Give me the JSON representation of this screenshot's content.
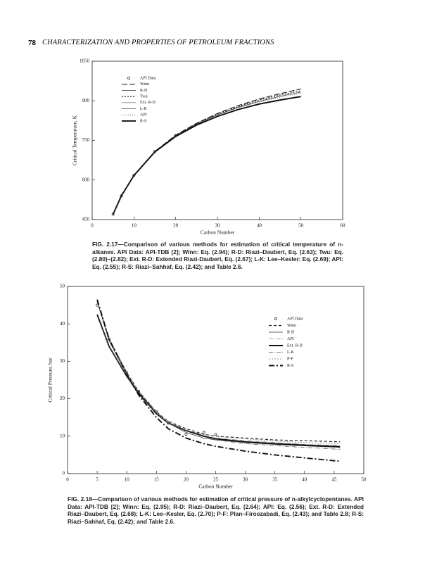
{
  "header": {
    "page_number": "78",
    "title": "CHARACTERIZATION AND PROPERTIES OF PETROLEUM FRACTIONS"
  },
  "chart_data": [
    {
      "type": "line",
      "x_label": "Carbon Number",
      "y_label": "Critical Temperature, K",
      "caption": "FIG. 2.17—Comparison of various methods for estimation of critical temperature of n-alkanes. API Data: API-TDB [2]; Winn: Eq. (2.94); R-D: Riazi–Daubert, Eq. (2.63); Twu: Eq. (2.80)–(2.82); Ext. R-D: Extended Riazi-Daubert, Eq. (2.67); L-K: Lee–Kesler: Eq. (2.69); API: Eq. (2.55); R-S: Riazi–Sahhaf, Eq. (2.42); and Table 2.6.",
      "x": [
        5,
        7,
        10,
        15,
        20,
        25,
        30,
        35,
        40,
        45,
        50
      ],
      "xlim": [
        0,
        60
      ],
      "xticks": [
        0,
        10,
        20,
        30,
        40,
        50,
        60
      ],
      "ylim": [
        450,
        1050
      ],
      "yticks": [
        450,
        600,
        750,
        900,
        1050
      ],
      "legend": "top-left",
      "series": [
        {
          "name": "API Data",
          "color": "#222222",
          "marker": "circle",
          "values": [
            470,
            540,
            618,
            708,
            768,
            null,
            null,
            null,
            null,
            null,
            null
          ]
        },
        {
          "name": "Winn",
          "color": "#222222",
          "dash": "8 3",
          "weight": "medium",
          "values": [
            470,
            540,
            618,
            708,
            770,
            815,
            852,
            882,
            907,
            927,
            945
          ]
        },
        {
          "name": "R-D",
          "color": "#333333",
          "dash": "none",
          "weight": "light",
          "values": [
            470,
            540,
            617,
            707,
            767,
            812,
            847,
            875,
            898,
            917,
            933
          ]
        },
        {
          "name": "Twu",
          "color": "#222222",
          "dash": "2 2",
          "weight": "medium",
          "values": [
            470,
            540,
            618,
            708,
            768,
            813,
            850,
            878,
            903,
            922,
            938
          ]
        },
        {
          "name": "Ext. R-D",
          "color": "#888888",
          "dash": "none",
          "weight": "light",
          "values": [
            470,
            540,
            617,
            706,
            765,
            808,
            842,
            868,
            888,
            905,
            918
          ]
        },
        {
          "name": "L-K",
          "color": "#444444",
          "dash": "none",
          "weight": "light",
          "values": [
            470,
            539,
            616,
            705,
            764,
            807,
            840,
            866,
            886,
            902,
            915
          ]
        },
        {
          "name": "API",
          "color": "#555555",
          "dash": "1 2",
          "weight": "light",
          "values": [
            470,
            540,
            618,
            707,
            767,
            811,
            846,
            873,
            895,
            913,
            928
          ]
        },
        {
          "name": "R-S",
          "color": "#111111",
          "dash": "none",
          "weight": "heavy",
          "values": [
            470,
            540,
            617,
            706,
            765,
            808,
            841,
            867,
            888,
            903,
            916
          ]
        }
      ]
    },
    {
      "type": "line",
      "x_label": "Carbon Number",
      "y_label": "Critical Pressure, bar",
      "caption": "FIG. 2.18—Comparison of various methods for estimation of critical pressure of n-alkylcyclopentanes. API Data: API-TDB [2]; Winn: Eq. (2.95); R-D: Riazi–Daubert, Eq. (2.64); API: Eq. (2.56); Ext. R-D: Extended Riazi–Daubert, Eq. (2.68); L-K: Lee–Kesler, Eq. (2.70); P-F: Plan–Firoozabadi, Eq. (2.43); and Table 2.8; R-S: Riazi–Sahhaf, Eq. (2.42); and Table 2.6.",
      "x": [
        5,
        7,
        10,
        12,
        15,
        17,
        20,
        23,
        25,
        30,
        35,
        40,
        46
      ],
      "xlim": [
        0,
        50
      ],
      "xticks": [
        0,
        5,
        10,
        15,
        20,
        25,
        30,
        35,
        40,
        45,
        50
      ],
      "ylim": [
        0,
        50
      ],
      "yticks": [
        0,
        10,
        20,
        30,
        40,
        50
      ],
      "legend": "top-right",
      "series": [
        {
          "name": "API Data",
          "color": "#222222",
          "marker": "circle",
          "values": [
            45,
            36,
            27,
            22,
            16.5,
            13.5,
            10.5,
            11,
            10.5,
            null,
            null,
            null,
            null
          ]
        },
        {
          "name": "Winn",
          "color": "#222222",
          "dash": "4 3",
          "weight": "medium",
          "values": [
            46,
            36,
            27,
            22,
            16.5,
            14,
            12,
            10.5,
            10,
            9.5,
            9,
            8.8,
            8.5
          ]
        },
        {
          "name": "R-D",
          "color": "#333333",
          "dash": "none",
          "weight": "light",
          "values": [
            46,
            35.5,
            26.5,
            21.5,
            16,
            13.5,
            11,
            9.5,
            9,
            8.3,
            7.8,
            7.4,
            7
          ]
        },
        {
          "name": "API",
          "color": "#888888",
          "dash": "6 2 1 2",
          "weight": "light",
          "values": [
            46,
            36,
            27,
            22,
            16.5,
            14,
            11.5,
            10,
            9.5,
            8.8,
            8.3,
            7.8,
            7.5
          ]
        },
        {
          "name": "Ext. R-D",
          "color": "#111111",
          "dash": "none",
          "weight": "heavy",
          "values": [
            42.5,
            34,
            26,
            21.5,
            16,
            13.5,
            11.5,
            10,
            9.3,
            8.5,
            8,
            7.6,
            7.2
          ]
        },
        {
          "name": "L-K",
          "color": "#555555",
          "dash": "6 2 1 2",
          "weight": "light",
          "values": [
            46,
            36,
            27,
            22,
            16.5,
            13.5,
            11,
            9.5,
            9,
            8,
            7.5,
            7,
            6.5
          ]
        },
        {
          "name": "P-F",
          "color": "#777777",
          "dash": "2 2",
          "weight": "light",
          "values": [
            42,
            34,
            26,
            21,
            16,
            13.5,
            11.5,
            10.5,
            10,
            9.3,
            8.7,
            8.3,
            8
          ]
        },
        {
          "name": "R-S",
          "color": "#111111",
          "dash": "8 3 2 3",
          "weight": "heavy",
          "values": [
            46.5,
            36,
            26.5,
            21,
            15,
            12,
            9.5,
            8,
            7.3,
            6,
            5,
            4.2,
            3.3
          ]
        }
      ]
    }
  ]
}
